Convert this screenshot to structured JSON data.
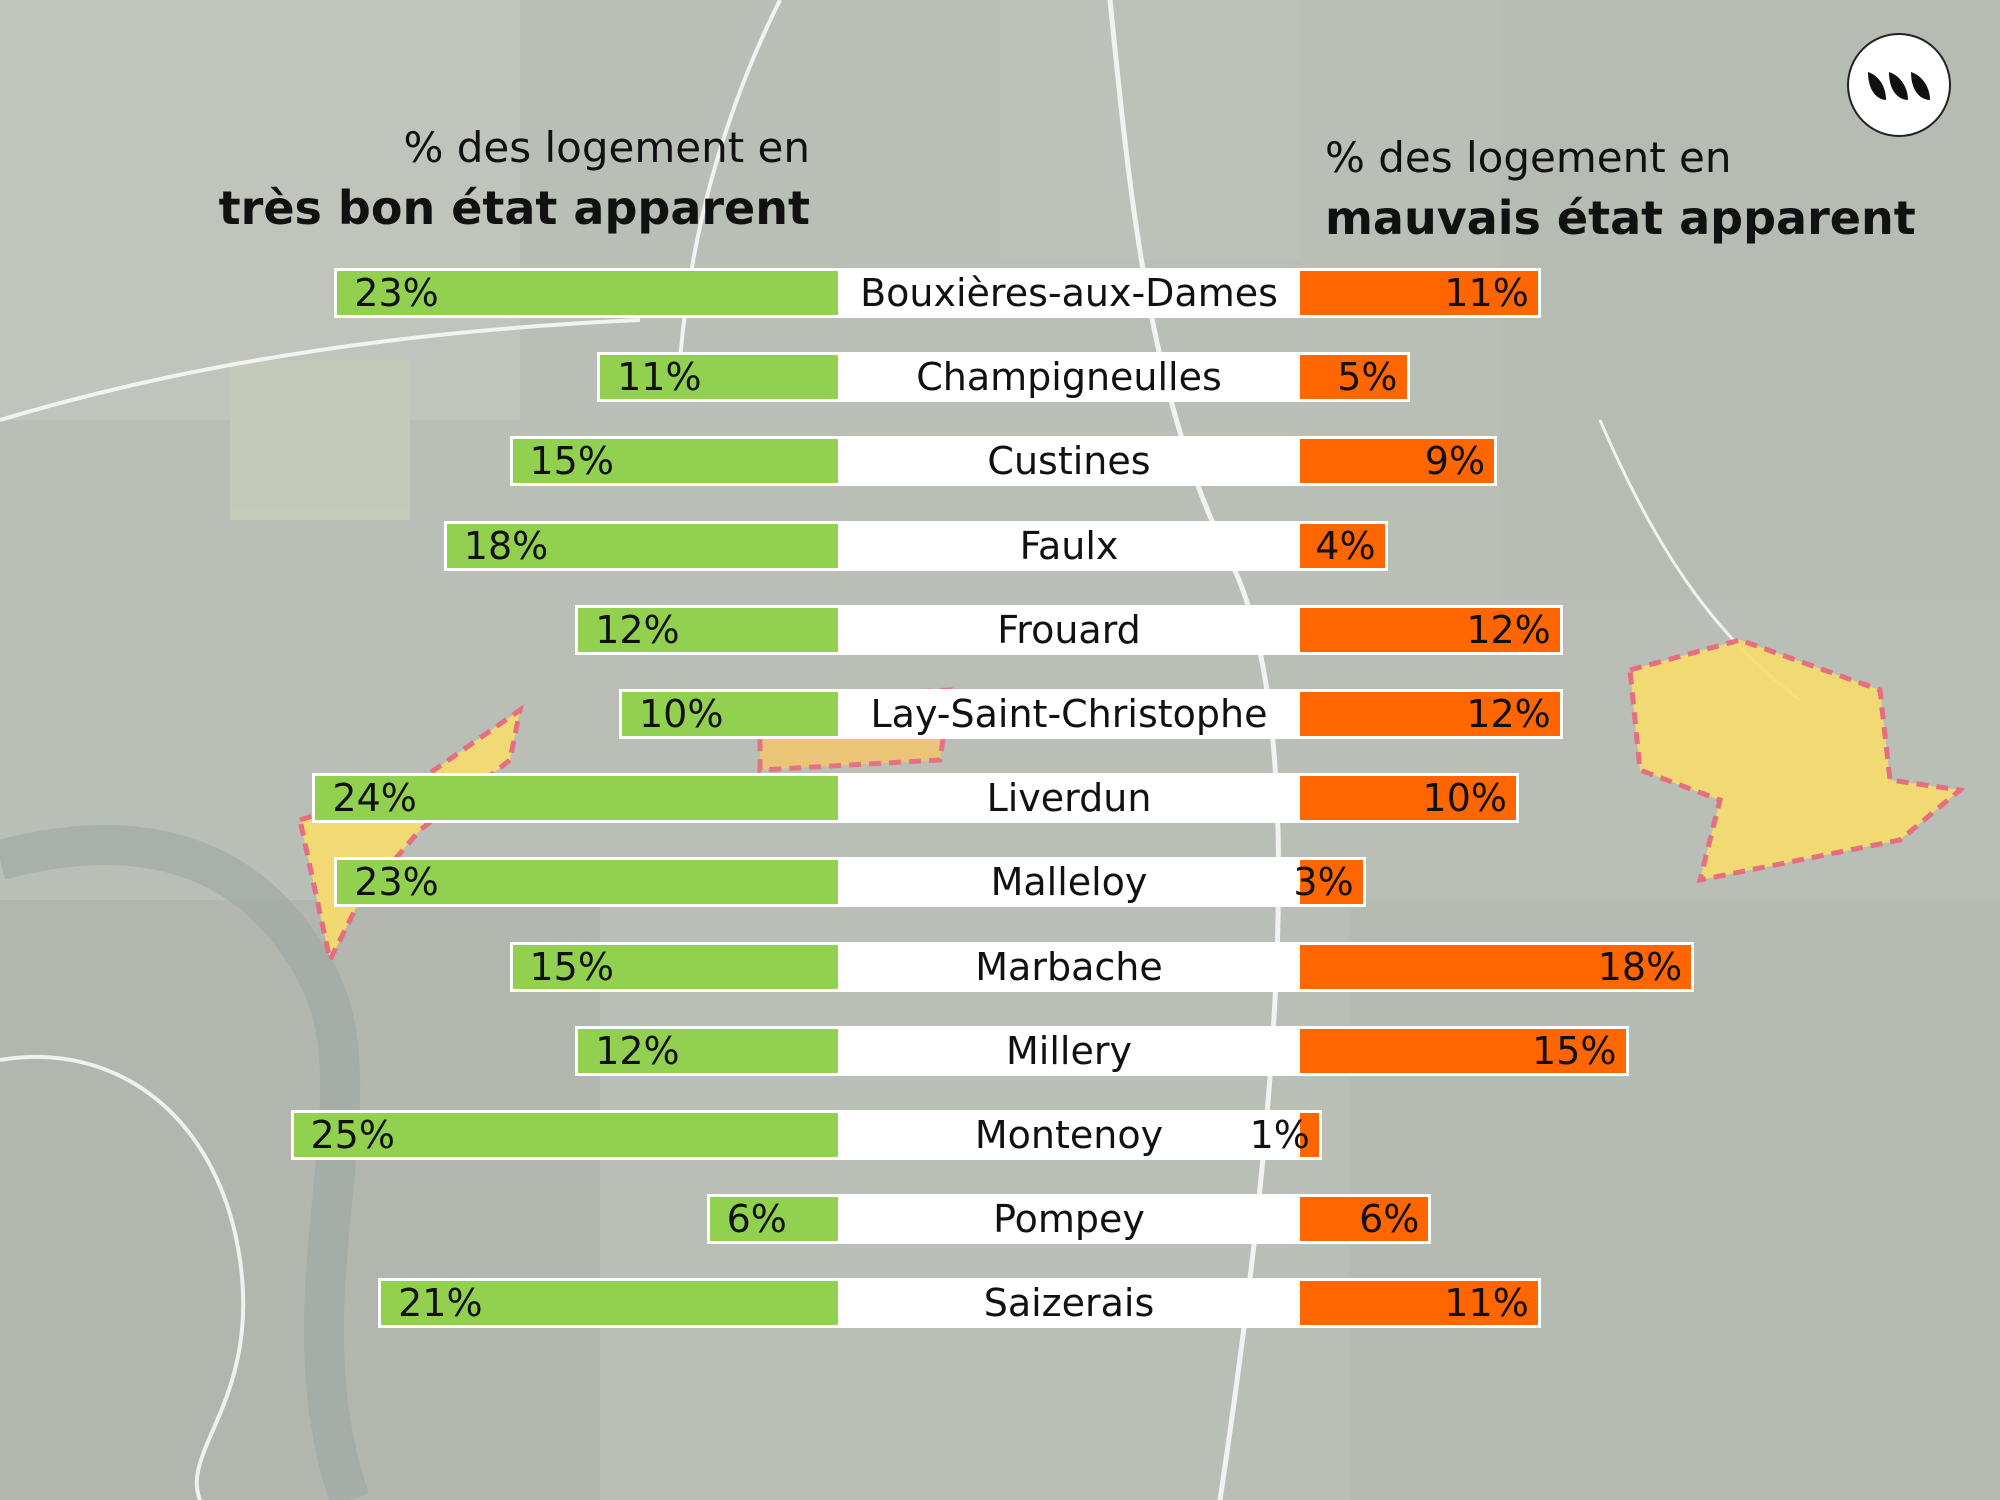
{
  "colors": {
    "good": "#92d050",
    "bad": "#ff6600",
    "label_box": "#ffffff"
  },
  "logo_icon": "leaf-wave-logo-icon",
  "chart_data": {
    "type": "bar",
    "orientation": "diverging-horizontal",
    "header_left": {
      "line1": "% des logement en",
      "line2": "très bon état apparent"
    },
    "header_right": {
      "line1": "% des logement en",
      "line2": "mauvais état apparent"
    },
    "categories": [
      "Bouxières-aux-Dames",
      "Champigneulles",
      "Custines",
      "Faulx",
      "Frouard",
      "Lay-Saint-Christophe",
      "Liverdun",
      "Malleloy",
      "Marbache",
      "Millery",
      "Montenoy",
      "Pompey",
      "Saizerais"
    ],
    "series": [
      {
        "name": "très bon état apparent",
        "values": [
          23,
          11,
          15,
          18,
          12,
          10,
          24,
          23,
          15,
          12,
          25,
          6,
          21
        ],
        "labels": [
          "23%",
          "11%",
          "15%",
          "18%",
          "12%",
          "10%",
          "24%",
          "23%",
          "15%",
          "12%",
          "25%",
          "6%",
          "21%"
        ]
      },
      {
        "name": "mauvais état apparent",
        "values": [
          11,
          5,
          9,
          4,
          12,
          12,
          10,
          3,
          18,
          15,
          1,
          6,
          11
        ],
        "labels": [
          "11%",
          "5%",
          "9%",
          "4%",
          "12%",
          "12%",
          "10%",
          "3%",
          "18%",
          "15%",
          "1%",
          "6%",
          "11%"
        ]
      }
    ]
  }
}
